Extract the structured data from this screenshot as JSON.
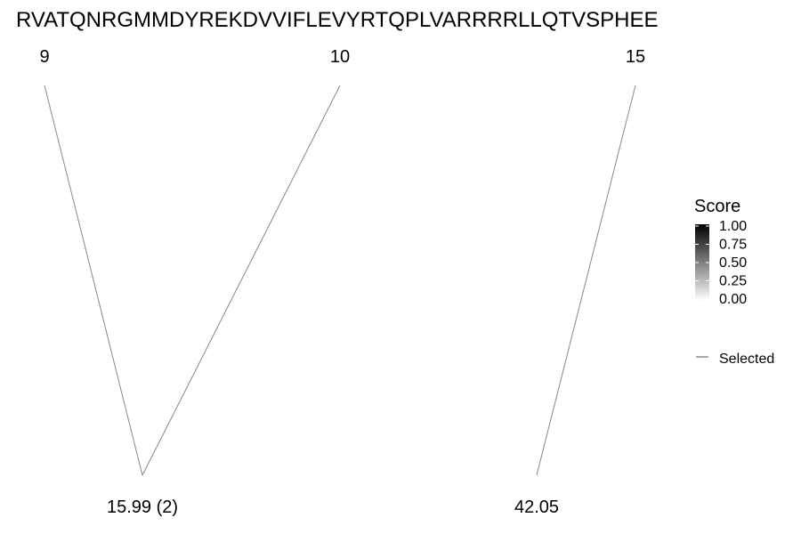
{
  "chart_data": {
    "type": "diagram",
    "sequence": "RVATQNRGMMDYREKDVVIFLEVYRTQPLVARRRRLLQTVSPHEE",
    "sites": [
      "9",
      "10",
      "15"
    ],
    "modifications": [
      "15.99 (2)",
      "42.05"
    ],
    "links": [
      {
        "site": "9",
        "modification": "15.99 (2)",
        "selected": true
      },
      {
        "site": "10",
        "modification": "15.99 (2)",
        "selected": true
      },
      {
        "site": "15",
        "modification": "42.05",
        "selected": true
      }
    ],
    "legend": {
      "title": "Score",
      "range": [
        0,
        1
      ],
      "ticks": [
        "1.00",
        "0.75",
        "0.50",
        "0.25",
        "0.00"
      ],
      "gradient": [
        "#ffffff",
        "#000000"
      ],
      "line_label": "Selected"
    },
    "link_color": "#888888"
  }
}
